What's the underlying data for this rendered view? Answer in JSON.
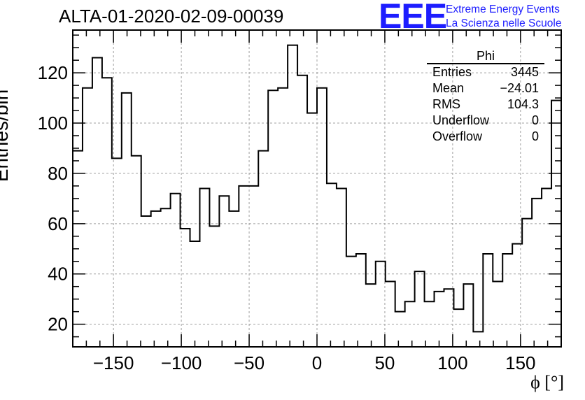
{
  "title": "ALTA-01-2020-02-09-00039",
  "logo": {
    "text": "EEE",
    "line1": "Extreme Energy Events",
    "line2": "La Scienza nelle Scuole",
    "color": "#1d1dff"
  },
  "stats_box": {
    "name": "Phi",
    "rows": [
      {
        "key": "Entries",
        "value": "3445"
      },
      {
        "key": "Mean",
        "value": "−24.01"
      },
      {
        "key": "RMS",
        "value": "104.3"
      },
      {
        "key": "Underflow",
        "value": "0"
      },
      {
        "key": "Overflow",
        "value": "0"
      }
    ]
  },
  "chart_data": {
    "type": "bar",
    "histogram": "step",
    "title": "ALTA-01-2020-02-09-00039",
    "xlabel": "ϕ [°]",
    "ylabel": "Entries/bin",
    "xlim": [
      -180,
      180
    ],
    "ylim": [
      11,
      137
    ],
    "bin_width": 7.2,
    "x_ticks": [
      -150,
      -100,
      -50,
      0,
      50,
      100,
      150
    ],
    "x_tick_labels": [
      "−150",
      "−100",
      "−50",
      "0",
      "50",
      "100",
      "150"
    ],
    "y_ticks": [
      20,
      40,
      60,
      80,
      100,
      120
    ],
    "y_tick_labels": [
      "20",
      "40",
      "60",
      "80",
      "100",
      "120"
    ],
    "grid": true,
    "values": [
      89,
      114,
      126,
      118,
      86,
      112,
      87,
      63,
      65,
      66,
      72,
      58,
      53,
      74,
      59,
      71,
      65,
      75,
      75,
      89,
      113,
      114,
      131,
      119,
      104,
      114,
      76,
      74,
      47,
      48,
      36,
      45,
      37,
      25,
      29,
      41,
      29,
      33,
      34,
      26,
      36,
      17,
      48,
      37,
      48,
      52,
      62,
      70,
      74,
      109
    ]
  }
}
